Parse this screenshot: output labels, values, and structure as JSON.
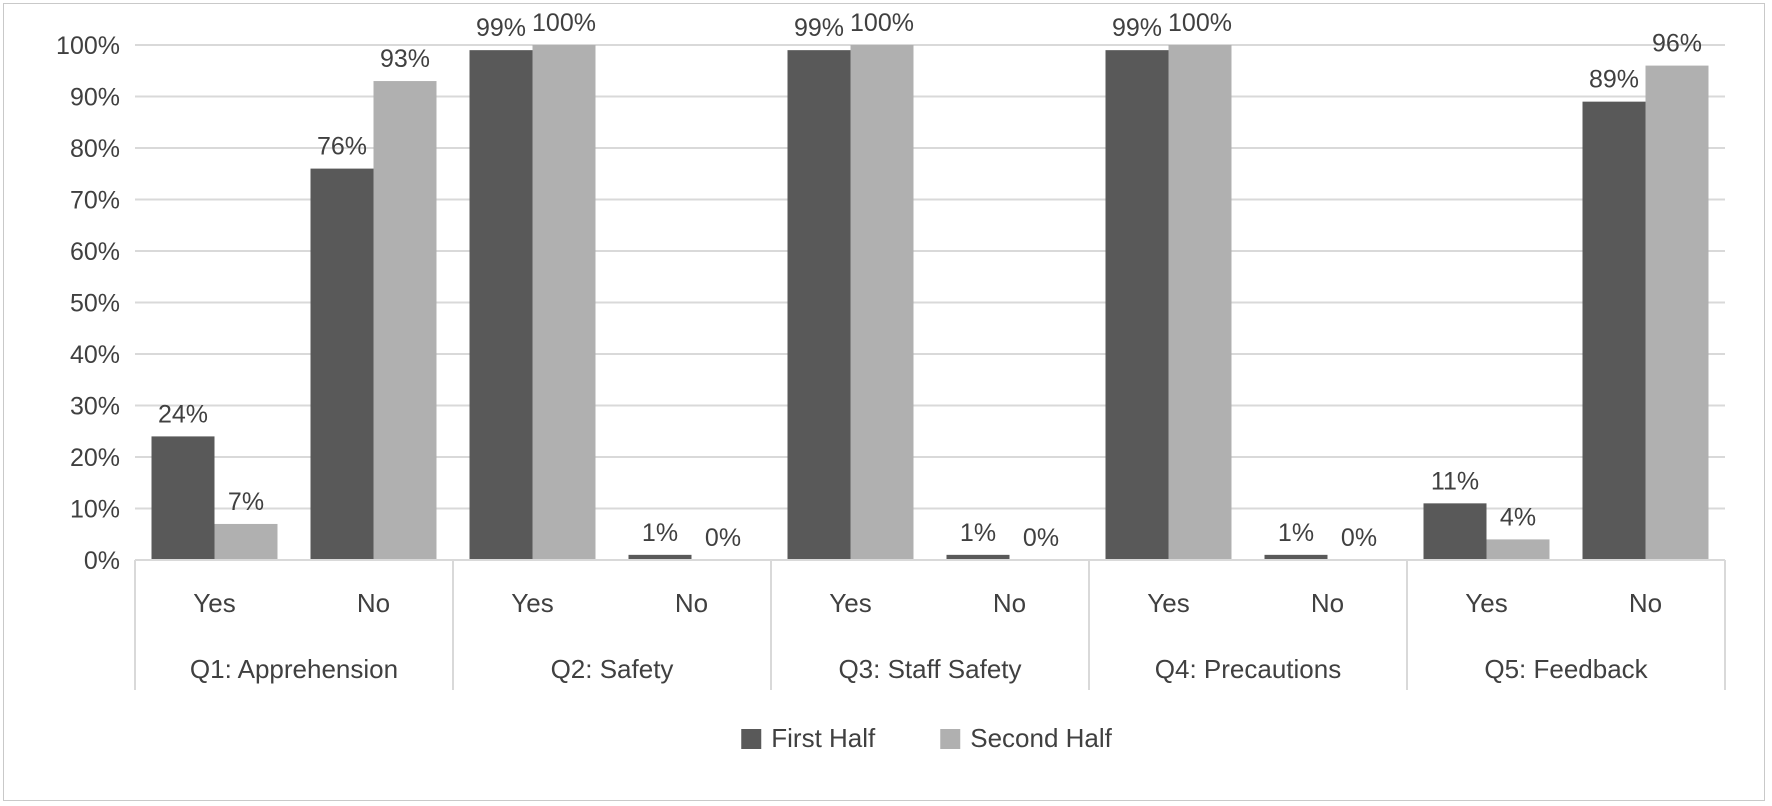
{
  "chart_data": {
    "type": "bar",
    "groups": [
      {
        "label": "Q1: Apprehension",
        "categories": [
          "Yes",
          "No"
        ]
      },
      {
        "label": "Q2: Safety",
        "categories": [
          "Yes",
          "No"
        ]
      },
      {
        "label": "Q3: Staff Safety",
        "categories": [
          "Yes",
          "No"
        ]
      },
      {
        "label": "Q4: Precautions",
        "categories": [
          "Yes",
          "No"
        ]
      },
      {
        "label": "Q5: Feedback",
        "categories": [
          "Yes",
          "No"
        ]
      }
    ],
    "series": [
      {
        "name": "First Half",
        "color": "#595959",
        "values": [
          24,
          76,
          99,
          1,
          99,
          1,
          99,
          1,
          11,
          89
        ],
        "labels": [
          "24%",
          "76%",
          "99%",
          "1%",
          "99%",
          "1%",
          "99%",
          "1%",
          "11%",
          "89%"
        ]
      },
      {
        "name": "Second Half",
        "color": "#b0b0b0",
        "values": [
          7,
          93,
          100,
          0,
          100,
          0,
          100,
          0,
          4,
          96
        ],
        "labels": [
          "7%",
          "93%",
          "100%",
          "0%",
          "100%",
          "0%",
          "100%",
          "0%",
          "4%",
          "96%"
        ]
      }
    ],
    "y_ticks": [
      "0%",
      "10%",
      "20%",
      "30%",
      "40%",
      "50%",
      "60%",
      "70%",
      "80%",
      "90%",
      "100%"
    ],
    "ylim": [
      0,
      100
    ],
    "grid": true,
    "legend_position": "bottom"
  }
}
